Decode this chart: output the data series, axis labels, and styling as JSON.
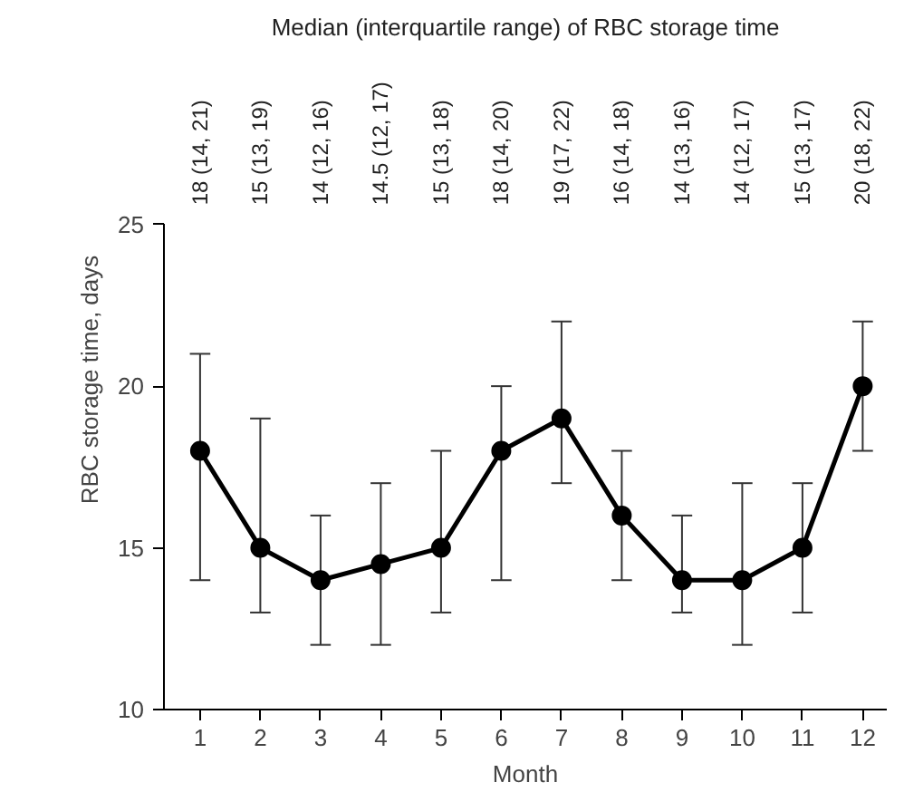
{
  "chart_data": {
    "type": "line",
    "title": "Median (interquartile range) of RBC storage time",
    "xlabel": "Month",
    "ylabel": "RBC storage time, days",
    "x": [
      1,
      2,
      3,
      4,
      5,
      6,
      7,
      8,
      9,
      10,
      11,
      12
    ],
    "series": [
      {
        "color": "#000000",
        "values": [
          18,
          15,
          14,
          14.5,
          15,
          18,
          19,
          16,
          14,
          14,
          15,
          20
        ],
        "errors": [
          [
            14,
            21
          ],
          [
            13,
            19
          ],
          [
            12,
            16
          ],
          [
            12,
            17
          ],
          [
            13,
            18
          ],
          [
            14,
            20
          ],
          [
            17,
            22
          ],
          [
            14,
            18
          ],
          [
            13,
            16
          ],
          [
            12,
            17
          ],
          [
            13,
            17
          ],
          [
            18,
            22
          ]
        ]
      }
    ],
    "annotations": [
      "18 (14, 21)",
      "15 (13, 19)",
      "14 (12, 16)",
      "14.5 (12, 17)",
      "15 (13, 18)",
      "18 (14, 20)",
      "19 (17, 22)",
      "16 (14, 18)",
      "14 (13, 16)",
      "14 (12, 17)",
      "15 (13, 17)",
      "20 (18, 22)"
    ],
    "xlim": [
      0.4,
      12.4
    ],
    "ylim": [
      10,
      25
    ],
    "xticks": [
      1,
      2,
      3,
      4,
      5,
      6,
      7,
      8,
      9,
      10,
      11,
      12
    ],
    "yticks": [
      10,
      15,
      20,
      25
    ],
    "marker": "circle",
    "line_style": "solid",
    "grid": false
  }
}
